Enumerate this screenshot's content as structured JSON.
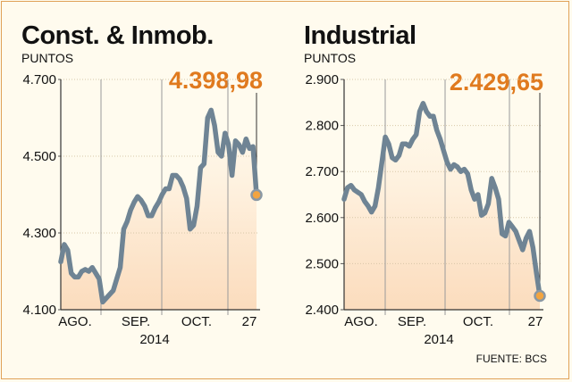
{
  "source": "FUENTE: BCS",
  "colors": {
    "line": "#6f8494",
    "accent": "#e07a1e",
    "area_top": "#fce7cf",
    "area_bottom": "#fff4e3",
    "background": "#fffbee"
  },
  "chart_data": [
    {
      "type": "line",
      "title": "Const. & Inmob.",
      "units": "PUNTOS",
      "last_value_label": "4.398,98",
      "ylim": [
        4100,
        4700
      ],
      "y_ticks": [
        4100,
        4300,
        4500,
        4700
      ],
      "y_tick_labels": [
        "4.100",
        "4.300",
        "4.500",
        "4.700"
      ],
      "x_tick_labels": [
        "AGO.",
        "SEP.",
        "OCT.",
        "27"
      ],
      "year_label": "2014",
      "values": [
        4225,
        4270,
        4255,
        4195,
        4185,
        4185,
        4200,
        4205,
        4200,
        4210,
        4195,
        4180,
        4120,
        4130,
        4140,
        4150,
        4180,
        4210,
        4310,
        4330,
        4360,
        4380,
        4395,
        4385,
        4370,
        4345,
        4345,
        4365,
        4380,
        4400,
        4415,
        4415,
        4450,
        4450,
        4440,
        4420,
        4390,
        4310,
        4320,
        4370,
        4470,
        4480,
        4600,
        4620,
        4580,
        4510,
        4500,
        4560,
        4530,
        4450,
        4540,
        4530,
        4510,
        4545,
        4520,
        4525,
        4399
      ]
    },
    {
      "type": "line",
      "title": "Industrial",
      "units": "PUNTOS",
      "last_value_label": "2.429,65",
      "ylim": [
        2400,
        2900
      ],
      "y_ticks": [
        2400,
        2500,
        2600,
        2700,
        2800,
        2900
      ],
      "y_tick_labels": [
        "2.400",
        "2.500",
        "2.600",
        "2.700",
        "2.800",
        "2.900"
      ],
      "x_tick_labels": [
        "AGO.",
        "SEP.",
        "OCT.",
        "27"
      ],
      "year_label": "2014",
      "values": [
        2640,
        2665,
        2670,
        2660,
        2655,
        2650,
        2635,
        2625,
        2612,
        2625,
        2665,
        2720,
        2775,
        2760,
        2730,
        2725,
        2735,
        2760,
        2760,
        2755,
        2770,
        2780,
        2830,
        2848,
        2830,
        2820,
        2820,
        2790,
        2770,
        2745,
        2720,
        2705,
        2715,
        2710,
        2700,
        2705,
        2695,
        2660,
        2640,
        2650,
        2605,
        2610,
        2630,
        2685,
        2665,
        2640,
        2565,
        2560,
        2590,
        2580,
        2570,
        2550,
        2530,
        2555,
        2570,
        2535,
        2480,
        2430
      ]
    }
  ]
}
